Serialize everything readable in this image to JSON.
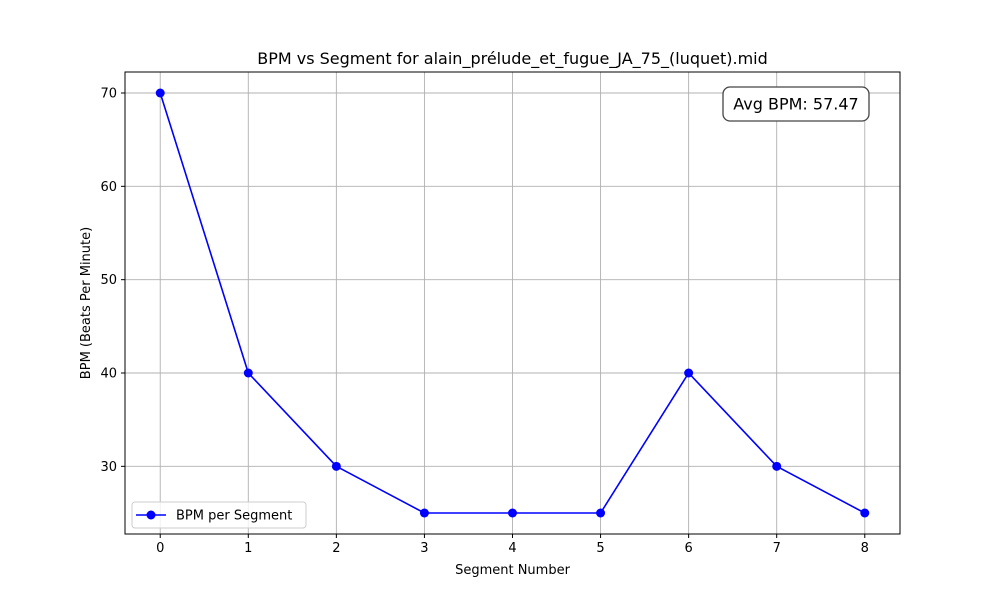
{
  "chart_data": {
    "type": "line",
    "title": "BPM vs Segment for alain_prélude_et_fugue_JA_75_(luquet).mid",
    "xlabel": "Segment Number",
    "ylabel": "BPM (Beats Per Minute)",
    "x": [
      0,
      1,
      2,
      3,
      4,
      5,
      6,
      7,
      8
    ],
    "xticks": [
      "0",
      "1",
      "2",
      "3",
      "4",
      "5",
      "6",
      "7",
      "8"
    ],
    "yticks": [
      "30",
      "40",
      "50",
      "60",
      "70"
    ],
    "xlim": [
      -0.4,
      8.4
    ],
    "ylim": [
      22.75,
      72.25
    ],
    "grid": true,
    "legend_position": "lower-left",
    "series": [
      {
        "name": "BPM per Segment",
        "color": "#0000ff",
        "marker": "circle",
        "values": [
          70,
          40,
          30,
          25,
          25,
          25,
          40,
          30,
          25
        ]
      }
    ],
    "annotation": "Avg BPM: 57.47"
  }
}
